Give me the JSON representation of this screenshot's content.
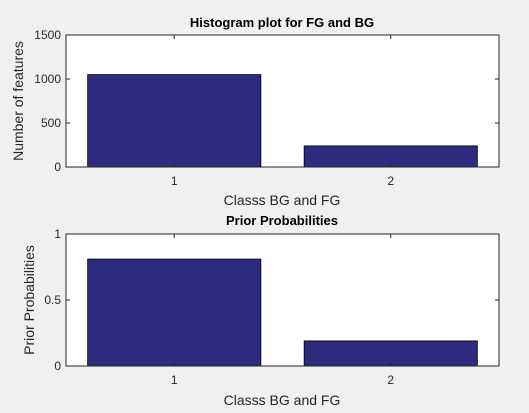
{
  "figure": {
    "background": "#f0f0f0",
    "axes_background": "#ffffff",
    "bar_color": "#2e2a7f"
  },
  "chart_data": [
    {
      "type": "bar",
      "title": "Histogram plot for FG and BG",
      "xlabel": "Classs BG and FG",
      "ylabel": "Number of features",
      "categories": [
        "1",
        "2"
      ],
      "values": [
        1050,
        240
      ],
      "ylim": [
        0,
        1500
      ],
      "yticks": [
        "0",
        "500",
        "1000",
        "1500"
      ],
      "grid": false,
      "legend": "none"
    },
    {
      "type": "bar",
      "title": "Prior Probabilities",
      "xlabel": "Classs BG and FG",
      "ylabel": "Prior Probabilities",
      "categories": [
        "1",
        "2"
      ],
      "values": [
        0.81,
        0.19
      ],
      "ylim": [
        0,
        1
      ],
      "yticks": [
        "0",
        "0.5",
        "1"
      ],
      "grid": false,
      "legend": "none"
    }
  ]
}
